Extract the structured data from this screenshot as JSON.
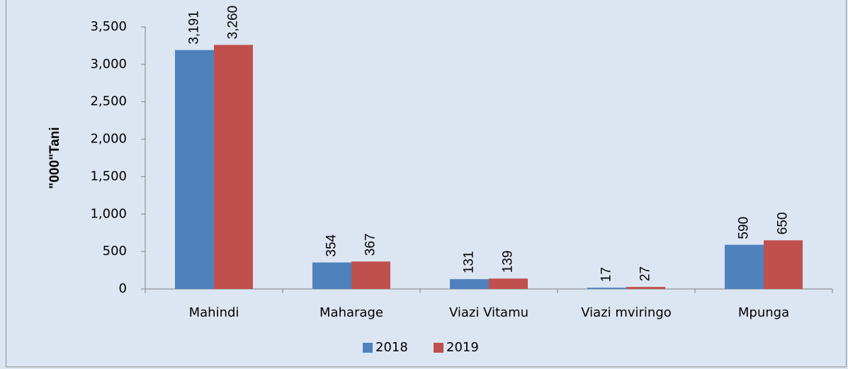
{
  "chart_data": {
    "type": "bar",
    "y_label": "\"000\"Tani",
    "categories": [
      "Mahindi",
      "Maharage",
      "Viazi Vitamu",
      "Viazi mviringo",
      "Mpunga"
    ],
    "series": [
      {
        "name": "2018",
        "color": "#4f81bd",
        "values": [
          3191,
          354,
          131,
          17,
          590
        ],
        "value_labels": [
          "3,191",
          "354",
          "131",
          "17",
          "590"
        ]
      },
      {
        "name": "2019",
        "color": "#c0504d",
        "values": [
          3260,
          367,
          139,
          27,
          650
        ],
        "value_labels": [
          "3,260",
          "367",
          "139",
          "27",
          "650"
        ]
      }
    ],
    "ylim": [
      0,
      3500
    ],
    "yticks": [
      0,
      500,
      {
        "value": 1000,
        "label": "1,000"
      },
      {
        "value": 1500,
        "label": "1,500"
      },
      {
        "value": 2000,
        "label": "2,000"
      },
      {
        "value": 2500,
        "label": "2,500"
      },
      {
        "value": 3000,
        "label": "3,000"
      },
      {
        "value": 3500,
        "label": "3,500"
      }
    ],
    "legend": "bottom"
  }
}
